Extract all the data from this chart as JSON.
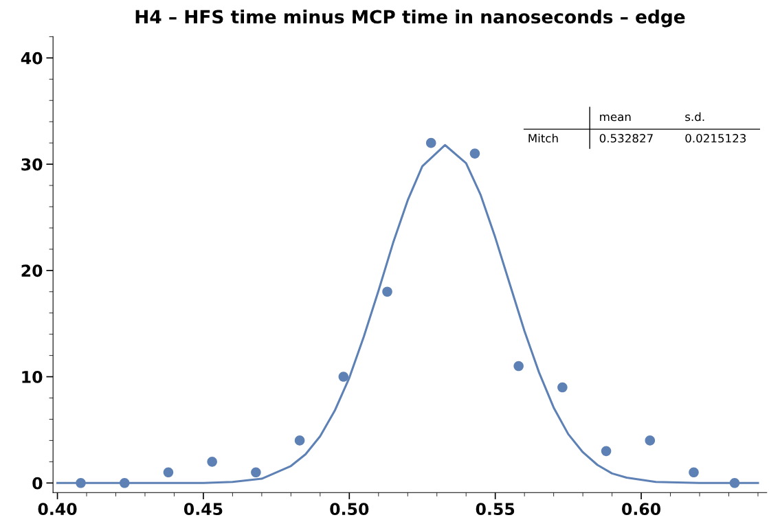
{
  "chart_data": {
    "type": "scatter",
    "title": "H4 – HFS time minus MCP time in nanoseconds – edge",
    "series": [
      {
        "color": "#5e81b5",
        "marker": "circle",
        "x": [
          0.408,
          0.423,
          0.438,
          0.453,
          0.468,
          0.483,
          0.498,
          0.513,
          0.528,
          0.543,
          0.558,
          0.573,
          0.588,
          0.603,
          0.618,
          0.632
        ],
        "values": [
          0,
          0,
          1,
          2,
          1,
          4,
          10,
          18,
          32,
          31,
          11,
          9,
          3,
          4,
          1,
          0
        ]
      },
      {
        "type": "line",
        "color": "#5e81b5",
        "marker": "none",
        "line_style": "solid",
        "x": [
          0.4,
          0.44,
          0.45,
          0.46,
          0.47,
          0.48,
          0.485,
          0.49,
          0.495,
          0.5,
          0.505,
          0.51,
          0.515,
          0.52,
          0.525,
          0.5328,
          0.54,
          0.545,
          0.55,
          0.555,
          0.56,
          0.565,
          0.57,
          0.575,
          0.58,
          0.585,
          0.59,
          0.595,
          0.605,
          0.62,
          0.64
        ],
        "values": [
          0,
          0,
          0,
          0.1,
          0.4,
          1.6,
          2.7,
          4.4,
          6.8,
          9.9,
          13.8,
          18.1,
          22.6,
          26.6,
          29.8,
          31.8,
          30.1,
          27.1,
          23.1,
          18.7,
          14.3,
          10.4,
          7.1,
          4.6,
          2.9,
          1.7,
          0.9,
          0.5,
          0.1,
          0,
          0
        ]
      }
    ],
    "xlim": [
      0.3985,
      0.643
    ],
    "ylim": [
      -0.9,
      42
    ],
    "xticks": [
      {
        "value": 0.4,
        "label": "0.40"
      },
      {
        "value": 0.45,
        "label": "0.45"
      },
      {
        "value": 0.5,
        "label": "0.50"
      },
      {
        "value": 0.55,
        "label": "0.55"
      },
      {
        "value": 0.6,
        "label": "0.60"
      }
    ],
    "yticks": [
      0,
      10,
      20,
      30,
      40
    ],
    "grid": false,
    "legend": false,
    "annotations": [
      "mean",
      "s.d.",
      "Mitch",
      "0.532827",
      "0.0215123"
    ]
  }
}
